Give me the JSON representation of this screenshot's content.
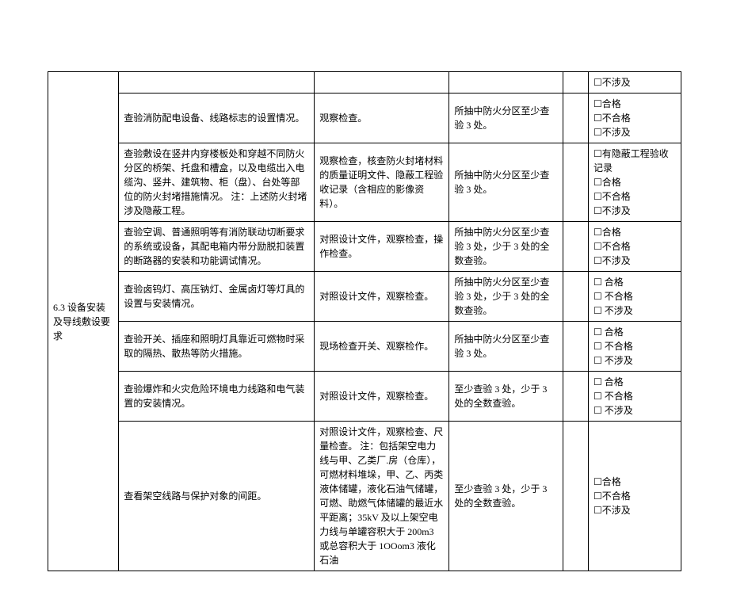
{
  "category": "6.3 设备安装及导线敷设要求",
  "checkbox": "☐",
  "rows": [
    {
      "item": "",
      "method": "",
      "sample": "",
      "results": [
        "☐不涉及"
      ]
    },
    {
      "item": "查验消防配电设备、线路标志的设置情况。",
      "method": "观察检查。",
      "sample": "所抽中防火分区至少查验 3 处。",
      "results": [
        "☐合格",
        "☐不合格",
        "☐不涉及"
      ]
    },
    {
      "item": "查验敷设在竖井内穿楼板处和穿越不同防火分区的桥架、托盘和槽盒，以及电缆出入电缆沟、竖井、建筑物、柜（盘）、台处等部位的防火封堵措施情况。\n注：上述防火封堵涉及隐蔽工程。",
      "method": "观察检查，核查防火封堵材料的质量证明文件、隐蔽工程验收记录（含相应的影像资料）。",
      "sample": "所抽中防火分区至少查验 3 处。",
      "results": [
        "☐有隐蔽工程验收记录",
        "☐合格",
        "☐不合格",
        "☐不涉及"
      ]
    },
    {
      "item": "查验空调、普通照明等有消防联动切断要求的系统或设备，其配电箱内带分励脱扣装置的断路器的安装和功能调试情况。",
      "method": "对照设计文件，观察检查，操作检查。",
      "sample": "所抽中防火分区至少查验 3 处，少于 3 处的全数查验。",
      "results": [
        "☐合格",
        "☐不合格",
        "☐不涉及"
      ]
    },
    {
      "item": "查验卤钨灯、高压钠灯、金属卤灯等灯具的设置与安装情况。",
      "method": "对照设计文件，观察检查。",
      "sample": "所抽中防火分区至少查验 3 处，少于 3 处的全数查验。",
      "results": [
        "☐ 合格",
        "☐ 不合格",
        "☐ 不涉及"
      ]
    },
    {
      "item": "查验开关、插座和照明灯具靠近可燃物时采取的隔热、散热等防火措施。",
      "method": "现场检查开关、观察检作。",
      "sample": "所抽中防火分区至少查验 3 处。",
      "results": [
        "☐ 合格",
        "☐ 不合格",
        "☐ 不涉及"
      ]
    },
    {
      "item": "查验爆炸和火灾危险环境电力线路和电气装置的安装情况。",
      "method": "对照设计文件，观察检查。",
      "sample": "至少查验 3 处，少于 3 处的全数查验。",
      "results": [
        "☐ 合格",
        "☐ 不合格",
        "☐ 不涉及"
      ]
    },
    {
      "item": "查看架空线路与保护对象的间距。",
      "method": "对照设计文件，观察检查、尺量检查。\n注：包括架空电力线与甲、乙类厂.房（仓库），可燃材料堆垛，甲、乙、丙类液体储罐，液化石油气储罐，可燃、助燃气体储罐的最近水平距离；35kV 及以上架空电力线与单罐容积大于 200m3 或总容积大于 1OOom3 液化石油",
      "sample": "至少查验 3 处，少于 3 处的全数查验。",
      "results": [
        "☐合格",
        "☐不合格",
        "☐不涉及"
      ]
    }
  ]
}
